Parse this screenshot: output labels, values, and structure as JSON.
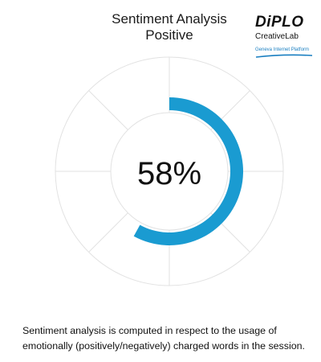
{
  "header": {
    "title_line1": "Sentiment Analysis",
    "title_line2": "Positive"
  },
  "logo": {
    "brand": "DiPLO",
    "sub": "CreativeLab",
    "tagline": "Geneva Internet Platform",
    "accent_color": "#1a7fc1"
  },
  "chart_data": {
    "type": "radial-progress",
    "title": "Sentiment Analysis",
    "subtitle": "Positive",
    "value_percent": 58,
    "value_label": "58%",
    "max_percent": 100,
    "bar_color": "#1a9bd1",
    "grid": true
  },
  "footnote": {
    "text": "Sentiment analysis is computed in respect to the usage of emotionally (positively/negatively) charged words in the session."
  }
}
